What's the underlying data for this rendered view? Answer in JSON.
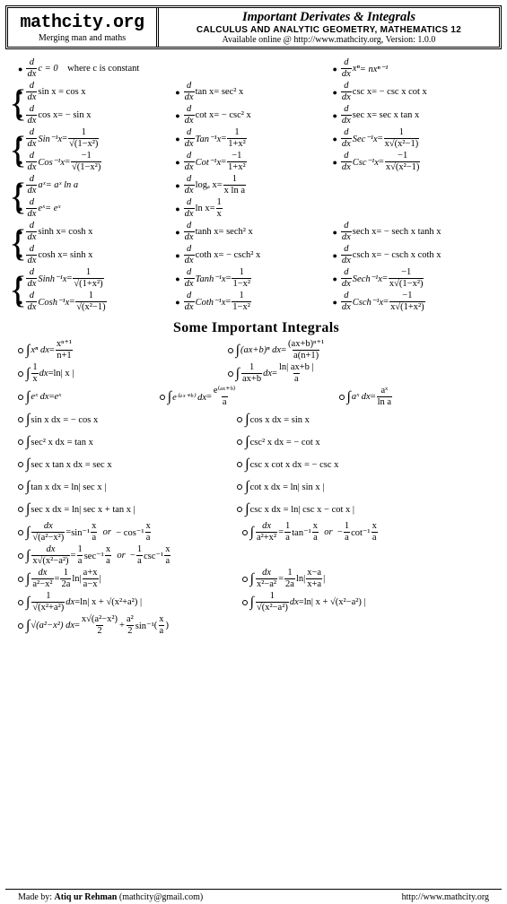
{
  "header": {
    "site": "mathcity.org",
    "tagline": "Merging man and maths",
    "title_main": "Important Derivates & Integrals",
    "title_sub": "CALCULUS AND ANALYTIC GEOMETRY, MATHEMATICS 12",
    "title_info": "Available online @ http://www.mathcity.org,  Version: 1.0.0"
  },
  "deriv_intro": {
    "r1c1": "c = 0",
    "r1c1_note": "where c is constant",
    "r1c3_lhs": "xⁿ",
    "r1c3_rhs": "= nxⁿ⁻¹"
  },
  "deriv": {
    "trig": {
      "r1": {
        "c1": [
          "sin x",
          "= cos x"
        ],
        "c2": [
          "tan x",
          "= sec² x"
        ],
        "c3": [
          "csc x",
          "= − csc x cot x"
        ]
      },
      "r2": {
        "c1": [
          "cos x",
          "= − sin x"
        ],
        "c2": [
          "cot x",
          "= − csc² x"
        ],
        "c3": [
          "sec x",
          "= sec x tan x"
        ]
      }
    },
    "invtrig": {
      "r1": {
        "c1": "Sin⁻¹x",
        "c1d": "√(1−x²)",
        "c2": "Tan⁻¹x",
        "c2n": "1",
        "c2d": "1+x²",
        "c3": "Sec⁻¹x",
        "c3d": "x√(x²−1)"
      },
      "r2": {
        "c1": "Cos⁻¹x",
        "c1n": "−1",
        "c1d": "√(1−x²)",
        "c2": "Cot⁻¹x",
        "c2n": "−1",
        "c2d": "1+x²",
        "c3": "Csc⁻¹x",
        "c3n": "−1",
        "c3d": "x√(x²−1)"
      }
    },
    "explog": {
      "r1": {
        "c1": [
          "aˣ",
          "= aˣ ln a"
        ],
        "c2": "logₐ x",
        "c2n": "1",
        "c2d": "x ln a"
      },
      "r2": {
        "c1": [
          "eˣ",
          "= eˣ"
        ],
        "c2": "ln x",
        "c2n": "1",
        "c2d": "x"
      }
    },
    "hyper": {
      "r1": {
        "c1": [
          "sinh x",
          "= cosh x"
        ],
        "c2": [
          "tanh x",
          "= sech² x"
        ],
        "c3": [
          "sech x",
          "= − sech x tanh x"
        ]
      },
      "r2": {
        "c1": [
          "cosh x",
          "= sinh x"
        ],
        "c2": [
          "coth x",
          "= − csch² x"
        ],
        "c3": [
          "csch x",
          "= − csch x coth x"
        ]
      }
    },
    "invhyper": {
      "r1": {
        "c1": "Sinh⁻¹x",
        "c1n": "1",
        "c1d": "√(1+x²)",
        "c2": "Tanh⁻¹x",
        "c2n": "1",
        "c2d": "1−x²",
        "c3": "Sech⁻¹x",
        "c3n": "−1",
        "c3d": "x√(1−x²)"
      },
      "r2": {
        "c1": "Cosh⁻¹x",
        "c1n": "1",
        "c1d": "√(x²−1)",
        "c2": "Coth⁻¹x",
        "c2n": "1",
        "c2d": "1−x²",
        "c3": "Csch⁻¹x",
        "c3n": "−1",
        "c3d": "x√(1+x²)"
      }
    }
  },
  "int_title": "Some Important Integrals",
  "integrals": {
    "r1": {
      "c1_lhs": "xⁿ dx",
      "c1_n": "xⁿ⁺¹",
      "c1_d": "n+1",
      "c2_lhs": "(ax+b)ⁿ dx",
      "c2_n": "(ax+b)ⁿ⁺¹",
      "c2_d": "a(n+1)"
    },
    "r2": {
      "c1_n": "1",
      "c1_d": "x",
      "c1_rhs": "ln| x |",
      "c2_n": "1",
      "c2_d": "ax+b",
      "c2_rn": "ln| ax+b |",
      "c2_rd": "a"
    },
    "r3": {
      "c1_lhs": "eˣ dx",
      "c1_rhs": "eˣ",
      "c2_lhs": "e⁽ᵃˣ⁺ᵇ⁾ dx",
      "c2_rn": "e⁽ᵃˣ⁺ᵇ⁾",
      "c2_rd": "a",
      "c3_lhs": "aˣ dx",
      "c3_rn": "aˣ",
      "c3_rd": "ln a"
    },
    "trig": [
      [
        "sin x dx = − cos x",
        "cos x dx = sin x"
      ],
      [
        "sec² x dx = tan x",
        "csc² x dx = − cot x"
      ],
      [
        "sec x tan x dx = sec x",
        "csc x cot x dx = − csc x"
      ],
      [
        "tan x dx = ln| sec x |",
        "cot x dx = ln| sin x |"
      ],
      [
        "sec x dx = ln| sec x + tan x |",
        "csc x dx = ln| csc x − cot x |"
      ]
    ],
    "r9": {
      "c1_d": "√(a²−x²)",
      "c1_r1": "sin⁻¹",
      "c1_arg": "x",
      "c1_argd": "a",
      "c1_or": "or",
      "c1_r2": "− cos⁻¹",
      "c2_d": "a²+x²",
      "c2_cn": "1",
      "c2_cd": "a",
      "c2_r1": "tan⁻¹",
      "c2_or": "or",
      "c2_r2": "cot⁻¹",
      "c2_rn2": "1",
      "c2_rd2": "a"
    },
    "r10": {
      "d": "x√(x²−a²)",
      "c": "1",
      "cd": "a",
      "r1": "sec⁻¹",
      "or": "or",
      "r2": "csc⁻¹",
      "rn2": "1",
      "rd2": "a",
      "arg": "x",
      "argd": "a"
    },
    "r11": {
      "c1_d": "a²−x²",
      "c1_cn": "1",
      "c1_cd": "2a",
      "c1_ln": "ln",
      "c1_an": "a+x",
      "c1_ad": "a−x",
      "c2_d": "x²−a²",
      "c2_cn": "1",
      "c2_cd": "2a",
      "c2_ln": "ln",
      "c2_an": "x−a",
      "c2_ad": "x+a"
    },
    "r12": {
      "c1_d": "√(x²+a²)",
      "c1_rhs": "ln| x + √(x²+a²) |",
      "c2_d": "√(x²−a²)",
      "c2_rhs": "ln| x + √(x²−a²) |"
    },
    "r13": {
      "lhs": "√(a²−x²) dx",
      "t1n": "x√(a²−x²)",
      "t1d": "2",
      "plus": "+",
      "t2n": "a²",
      "t2d": "2",
      "fn": "sin⁻¹",
      "an": "x",
      "ad": "a"
    }
  },
  "footer": {
    "left_label": "Made by:",
    "left_name": "Atiq ur Rehman",
    "left_email": "(mathcity@gmail.com)",
    "right": "http://www.mathcity.org"
  },
  "style": {
    "bg": "#ffffff",
    "fg": "#000000",
    "body_font_size": 10.5,
    "title_font_size": 16,
    "header_font_size": 20
  }
}
